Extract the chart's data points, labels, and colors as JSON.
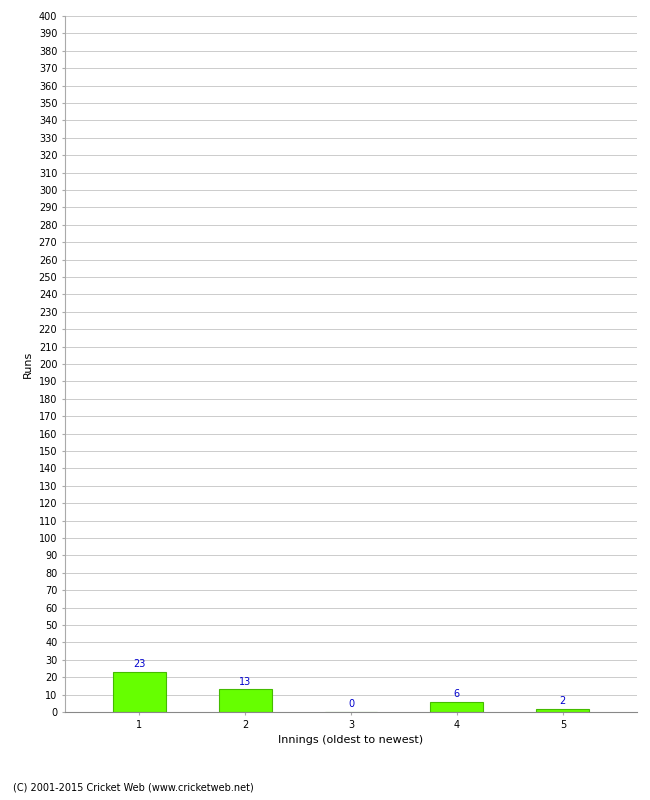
{
  "categories": [
    "1",
    "2",
    "3",
    "4",
    "5"
  ],
  "values": [
    23,
    13,
    0,
    6,
    2
  ],
  "bar_color": "#66ff00",
  "bar_edge_color": "#44bb00",
  "xlabel": "Innings (oldest to newest)",
  "ylabel": "Runs",
  "ylim": [
    0,
    400
  ],
  "yticks": [
    0,
    10,
    20,
    30,
    40,
    50,
    60,
    70,
    80,
    90,
    100,
    110,
    120,
    130,
    140,
    150,
    160,
    170,
    180,
    190,
    200,
    210,
    220,
    230,
    240,
    250,
    260,
    270,
    280,
    290,
    300,
    310,
    320,
    330,
    340,
    350,
    360,
    370,
    380,
    390,
    400
  ],
  "label_color": "#0000cc",
  "label_fontsize": 7,
  "axis_fontsize": 7,
  "grid_color": "#cccccc",
  "background_color": "#ffffff",
  "footer": "(C) 2001-2015 Cricket Web (www.cricketweb.net)",
  "footer_fontsize": 7
}
